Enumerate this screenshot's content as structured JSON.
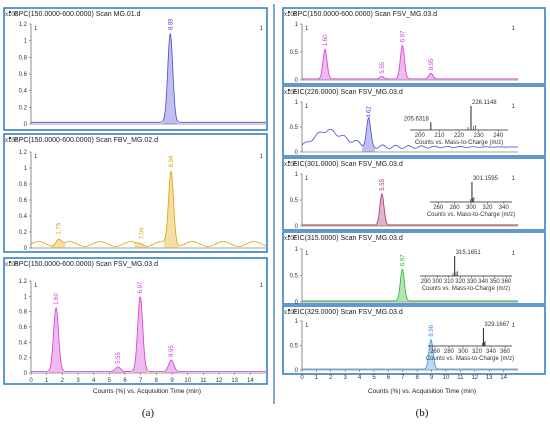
{
  "colors": {
    "frame_border": "#3a7fc4",
    "separator": "#2e6fb4",
    "blue_trace": "#4a4ad0",
    "orange_trace": "#e0a000",
    "magenta_trace": "#d23ad2",
    "green_trace": "#28b428",
    "lightblue_trace": "#3c8fe0",
    "eic301_trace": "#a2306e",
    "axis": "#444444"
  },
  "panel_labels": [
    "(a)",
    "(b)"
  ],
  "x_axis_label": "Counts (%) vs. Acquisition Time (min)",
  "chart_data": [
    {
      "type": "line",
      "panel": "a",
      "title": "BPC(150.0000-600.0000) Scan MG.01.d",
      "scale": "x10²",
      "xlim": [
        0,
        15
      ],
      "ylim": [
        0,
        1.2
      ],
      "yticks": [
        "0",
        "0.2",
        "0.4",
        "0.6",
        "0.8",
        "1",
        "1.2"
      ],
      "line_color": "blue_trace",
      "peaks": [
        {
          "label": "8.89",
          "x": 8.89,
          "y": 1.09
        }
      ],
      "baseline": 0.02
    },
    {
      "type": "line",
      "panel": "a",
      "title": "BPC(150.0000-600.0000) Scan FBV_MG.02.d",
      "scale": "x10²",
      "xlim": [
        0,
        15
      ],
      "ylim": [
        0,
        1.2
      ],
      "yticks": [
        "0",
        "0.2",
        "0.4",
        "0.6",
        "0.8",
        "1",
        "1.2"
      ],
      "line_color": "orange_trace",
      "peaks": [
        {
          "label": "1.75",
          "x": 1.75,
          "y": 0.13
        },
        {
          "label": "7.04",
          "x": 7.04,
          "y": 0.07
        },
        {
          "label": "8.94",
          "x": 8.94,
          "y": 0.97
        }
      ],
      "baseline": 0.05
    },
    {
      "type": "line",
      "panel": "a",
      "title": "BPC(150.0000-600.0000) Scan FSV_MG.03.d",
      "scale": "x10²",
      "xlim": [
        0,
        15
      ],
      "ylim": [
        0,
        1.2
      ],
      "yticks": [
        "0",
        "0.2",
        "0.4",
        "0.6",
        "0.8",
        "1",
        "1.2"
      ],
      "xticks": [
        "0",
        "1",
        "2",
        "3",
        "4",
        "5",
        "6",
        "7",
        "8",
        "9",
        "10",
        "11",
        "12",
        "13",
        "14"
      ],
      "line_color": "magenta_trace",
      "peaks": [
        {
          "label": "1.60",
          "x": 1.6,
          "y": 0.85
        },
        {
          "label": "5.55",
          "x": 5.55,
          "y": 0.08
        },
        {
          "label": "6.97",
          "x": 6.97,
          "y": 1.0
        },
        {
          "label": "8.95",
          "x": 8.95,
          "y": 0.17
        }
      ],
      "baseline": 0.02
    },
    {
      "type": "line",
      "panel": "b",
      "title": "BPC(150.0000-600.0000) Scan FSV_MG.03.d",
      "scale": "x10²",
      "xlim": [
        0,
        15
      ],
      "ylim": [
        0,
        1
      ],
      "yticks": [
        "0",
        "0.5",
        "1"
      ],
      "line_color": "magenta_trace",
      "peaks": [
        {
          "label": "1.60",
          "x": 1.6,
          "y": 0.55
        },
        {
          "label": "5.55",
          "x": 5.55,
          "y": 0.06
        },
        {
          "label": "6.97",
          "x": 6.97,
          "y": 0.62
        },
        {
          "label": "8.95",
          "x": 8.95,
          "y": 0.12
        }
      ],
      "baseline": 0.02
    },
    {
      "type": "line",
      "panel": "b",
      "title": "EIC(226.0000) Scan FSV_MG.03.d",
      "scale": "x10²",
      "xlim": [
        0,
        15
      ],
      "ylim": [
        0,
        1
      ],
      "yticks": [
        "0",
        "0.5",
        "1"
      ],
      "line_color": "blue_trace",
      "peaks": [
        {
          "label": "4.62",
          "x": 4.62,
          "y": 0.62
        }
      ],
      "hump": true,
      "baseline": 0.1,
      "ms_inset": {
        "xlabel": "Counts vs. Mass-to-Charge (m/z)",
        "xticks": [
          "200",
          "210",
          "220",
          "230",
          "240"
        ],
        "xlim": [
          195,
          245
        ],
        "peaks": [
          {
            "mz": 205.6318,
            "label": "205.6318",
            "rel": 0.32
          },
          {
            "mz": 226.1148,
            "label": "226.1148",
            "rel": 1.0
          }
        ]
      }
    },
    {
      "type": "line",
      "panel": "b",
      "title": "EIC(301.0000) Scan FSV_MG.03.d",
      "scale": "x10²",
      "xlim": [
        0,
        15
      ],
      "ylim": [
        0,
        1
      ],
      "yticks": [
        "0",
        "0.5",
        "1"
      ],
      "line_color": "eic301_trace",
      "peaks": [
        {
          "label": "5.55",
          "x": 5.55,
          "y": 0.62
        }
      ],
      "baseline": 0.02,
      "ms_inset": {
        "xlabel": "Counts vs. Mass-to-Charge (m/z)",
        "xticks": [
          "260",
          "280",
          "300",
          "320",
          "340"
        ],
        "xlim": [
          250,
          350
        ],
        "peaks": [
          {
            "mz": 301.1595,
            "label": "301.1595",
            "rel": 1.0
          }
        ]
      }
    },
    {
      "type": "line",
      "panel": "b",
      "title": "EIC(315.0000) Scan FSV_MG.03.d",
      "scale": "x10²",
      "xlim": [
        0,
        15
      ],
      "ylim": [
        0,
        1
      ],
      "yticks": [
        "0",
        "0.5",
        "1"
      ],
      "line_color": "green_trace",
      "peaks": [
        {
          "label": "6.97",
          "x": 6.97,
          "y": 0.62
        }
      ],
      "baseline": 0.02,
      "ms_inset": {
        "xlabel": "Counts vs. Mass-to-Charge (m/z)",
        "xticks": [
          "290",
          "300",
          "310",
          "320",
          "330",
          "340",
          "350",
          "360"
        ],
        "xlim": [
          285,
          365
        ],
        "peaks": [
          {
            "mz": 315.1651,
            "label": "315.1651",
            "rel": 1.0
          }
        ]
      }
    },
    {
      "type": "line",
      "panel": "b",
      "title": "EIC(329.0000) Scan FSV_MG.03.d",
      "scale": "x10²",
      "xlim": [
        0,
        15
      ],
      "ylim": [
        0,
        1
      ],
      "yticks": [
        "0",
        "0.5",
        "1"
      ],
      "xticks": [
        "0",
        "1",
        "2",
        "3",
        "4",
        "5",
        "6",
        "7",
        "8",
        "9",
        "10",
        "11",
        "12",
        "13",
        "14"
      ],
      "line_color": "lightblue_trace",
      "peaks": [
        {
          "label": "8.96",
          "x": 8.96,
          "y": 0.62
        }
      ],
      "baseline": 0.02,
      "ms_inset": {
        "xlabel": "Counts vs. Mass-to-Charge (m/z)",
        "xticks": [
          "260",
          "280",
          "300",
          "320",
          "340",
          "360"
        ],
        "xlim": [
          250,
          370
        ],
        "peaks": [
          {
            "mz": 329.1667,
            "label": "329.1667",
            "rel": 1.0
          }
        ]
      }
    }
  ]
}
